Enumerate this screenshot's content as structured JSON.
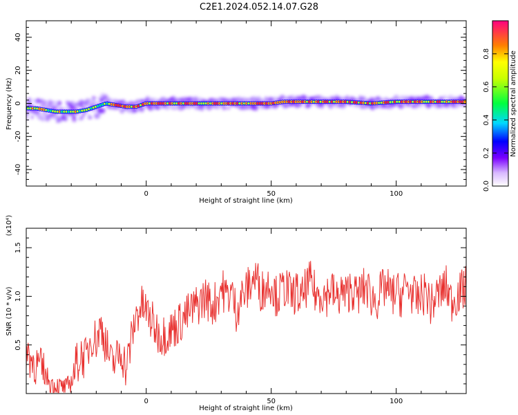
{
  "title": "C2E1.2024.052.14.07.G28",
  "chart_data": [
    {
      "type": "heatmap",
      "xlabel": "Height of straight line (km)",
      "ylabel": "Frequency (Hz)",
      "xlim": [
        -48,
        128
      ],
      "ylim": [
        -50,
        50
      ],
      "xticks": [
        0,
        50,
        100
      ],
      "yticks": [
        -40,
        -20,
        0,
        20,
        40
      ],
      "xtick_labels": [
        "0",
        "50",
        "100"
      ],
      "ytick_labels": [
        "-40",
        "-20",
        "0",
        "20",
        "40"
      ],
      "colorbar": {
        "label": "Normalized spectral amplitude",
        "range": [
          0,
          1
        ],
        "ticks": [
          0.0,
          0.2,
          0.4,
          0.6,
          0.8
        ],
        "tick_labels": [
          "0.0",
          "0.2",
          "0.4",
          "0.6",
          "0.8"
        ]
      },
      "ridge": {
        "x": [
          -48,
          -44,
          -40,
          -36,
          -32,
          -28,
          -24,
          -20,
          -16,
          -12,
          -8,
          -4,
          0,
          4,
          8,
          12,
          16,
          20,
          30,
          40,
          50,
          55,
          60,
          70,
          80,
          90,
          100,
          110,
          120,
          128
        ],
        "freq": [
          -3,
          -3,
          -4,
          -5,
          -5,
          -5,
          -4,
          -2,
          0,
          -1,
          -2,
          -2,
          0,
          0,
          0,
          0,
          0,
          0,
          0,
          0,
          0,
          1,
          1,
          1,
          1,
          0,
          1,
          1,
          1,
          1
        ]
      }
    },
    {
      "type": "line",
      "xlabel": "Height of straight line (km)",
      "ylabel": "SNR (10 * v/v)",
      "y_multiplier": "(x10⁴)",
      "xlim": [
        -48,
        128
      ],
      "ylim": [
        0,
        1.7
      ],
      "xticks": [
        0,
        50,
        100
      ],
      "yticks": [
        0.5,
        1.0,
        1.5
      ],
      "xtick_labels": [
        "0",
        "50",
        "100"
      ],
      "ytick_labels": [
        "0.5",
        "1.0",
        "1.5"
      ],
      "series": [
        {
          "color": "#e8312f",
          "x": [
            -48,
            -46,
            -44,
            -42,
            -40,
            -38,
            -36,
            -34,
            -32,
            -30,
            -28,
            -26,
            -24,
            -22,
            -20,
            -18,
            -16,
            -14,
            -12,
            -10,
            -8,
            -6,
            -4,
            -2,
            0,
            2,
            4,
            6,
            8,
            10,
            12,
            14,
            16,
            18,
            20,
            22,
            24,
            26,
            28,
            30,
            32,
            34,
            36,
            38,
            40,
            42,
            44,
            46,
            48,
            50,
            52,
            54,
            56,
            58,
            60,
            62,
            64,
            66,
            68,
            70,
            72,
            74,
            76,
            78,
            80,
            82,
            84,
            86,
            88,
            90,
            92,
            94,
            96,
            98,
            100,
            102,
            104,
            106,
            108,
            110,
            112,
            114,
            116,
            118,
            120,
            122,
            124,
            126,
            128
          ],
          "y": [
            0.45,
            0.35,
            0.3,
            0.25,
            0.18,
            0.1,
            0.08,
            0.06,
            0.05,
            0.12,
            0.3,
            0.4,
            0.35,
            0.6,
            0.55,
            0.7,
            0.5,
            0.3,
            0.35,
            0.45,
            0.25,
            0.55,
            0.8,
            0.9,
            0.85,
            0.75,
            0.65,
            0.6,
            0.62,
            0.65,
            0.7,
            0.75,
            0.8,
            0.85,
            0.9,
            0.95,
            1.0,
            0.9,
            0.95,
            1.1,
            1.0,
            1.05,
            0.85,
            1.0,
            1.05,
            1.15,
            1.2,
            1.05,
            1.1,
            1.15,
            1.0,
            1.05,
            1.1,
            1.0,
            1.05,
            0.95,
            1.1,
            1.15,
            1.0,
            1.05,
            1.0,
            1.1,
            0.95,
            1.05,
            1.0,
            1.1,
            1.0,
            1.05,
            1.1,
            1.0,
            0.95,
            1.05,
            1.1,
            1.0,
            1.05,
            1.0,
            1.1,
            1.05,
            0.95,
            1.0,
            1.05,
            0.9,
            1.0,
            1.05,
            1.1,
            0.95,
            1.0,
            1.05,
            1.1
          ]
        }
      ]
    }
  ]
}
